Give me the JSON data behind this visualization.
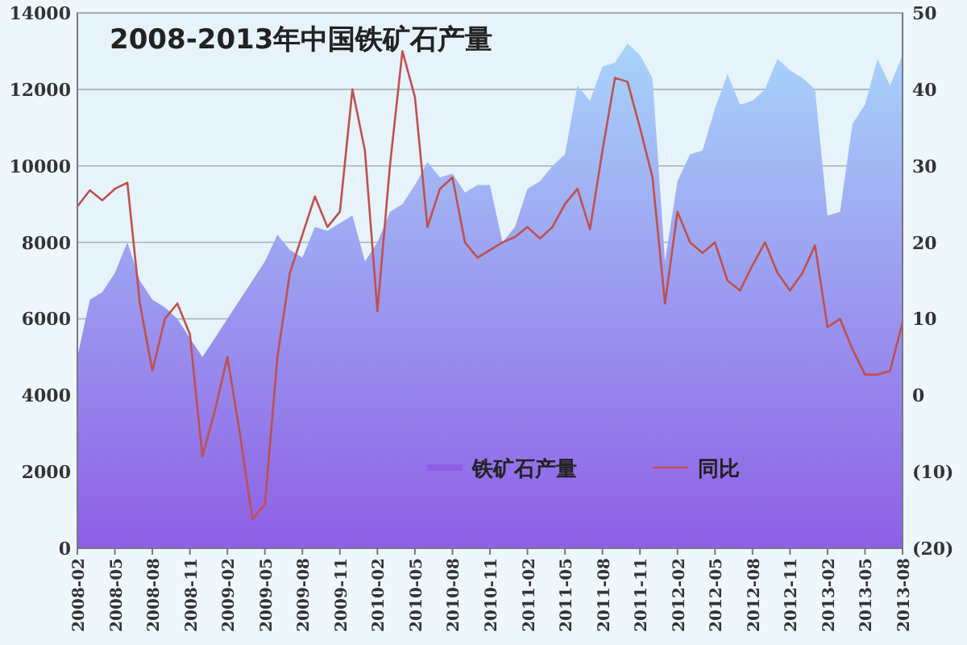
{
  "chart_data": {
    "type": "area",
    "title": "2008-2013年中国铁矿石产量",
    "categories": [
      "2008-02",
      null,
      null,
      "2008-05",
      null,
      null,
      "2008-08",
      null,
      null,
      "2008-11",
      null,
      null,
      "2009-02",
      null,
      null,
      "2009-05",
      null,
      null,
      "2009-08",
      null,
      null,
      "2009-11",
      null,
      null,
      "2010-02",
      null,
      null,
      "2010-05",
      null,
      null,
      "2010-08",
      null,
      null,
      "2010-11",
      null,
      null,
      "2011-02",
      null,
      null,
      "2011-05",
      null,
      null,
      "2011-08",
      null,
      null,
      "2011-11",
      null,
      null,
      "2012-02",
      null,
      null,
      "2012-05",
      null,
      null,
      "2012-08",
      null,
      null,
      "2012-11",
      null,
      null,
      "2013-02",
      null,
      null,
      "2013-05",
      null,
      null,
      "2013-08"
    ],
    "series": [
      {
        "name": "铁矿石产量",
        "color": "#8e5fe6",
        "values": [
          5000,
          6500,
          6700,
          7200,
          8000,
          7000,
          6500,
          6300,
          6000,
          5500,
          5000,
          5500,
          6000,
          6500,
          7000,
          7500,
          8200,
          7800,
          7600,
          8400,
          8300,
          8500,
          8700,
          7500,
          8000,
          8800,
          9000,
          9500,
          10100,
          9700,
          9800,
          9300,
          9500,
          9500,
          8000,
          8400,
          9400,
          9600,
          10000,
          10300,
          12100,
          11700,
          12600,
          12700,
          13200,
          12900,
          12300,
          7500,
          9600,
          10300,
          10400,
          11500,
          12400,
          11600,
          11700,
          12000,
          12800,
          12500,
          12300,
          12000,
          8700,
          8800,
          11100,
          11600,
          12800,
          12100,
          12900
        ]
      },
      {
        "name": "同比",
        "type": "line",
        "axis": "y2",
        "color": "#c0504d",
        "values": [
          24.7,
          26.8,
          25.5,
          27,
          27.8,
          12,
          3.2,
          10,
          12,
          8,
          -8,
          -2,
          5,
          -5,
          -16.2,
          -14.3,
          5,
          16,
          21,
          26,
          22,
          24,
          40,
          32,
          11,
          30,
          45,
          39,
          22,
          27,
          28.5,
          20,
          18,
          19,
          20,
          20.7,
          22,
          20.5,
          22,
          25,
          27,
          21.7,
          32,
          41.5,
          41,
          35,
          28.5,
          12,
          24,
          20,
          18.6,
          20,
          15,
          13.7,
          17,
          20,
          16,
          13.7,
          16,
          19.6,
          8.9,
          10,
          6,
          2.7,
          2.7,
          3.2,
          9.5
        ]
      }
    ],
    "ylim": [
      0,
      14000
    ],
    "yticks": [
      0,
      2000,
      4000,
      6000,
      8000,
      10000,
      12000,
      14000
    ],
    "y2lim": [
      -20,
      50
    ],
    "y2ticks": [
      {
        "value": -20,
        "label": "(20)"
      },
      {
        "value": -10,
        "label": "(10)"
      },
      0,
      10,
      20,
      30,
      40,
      50
    ],
    "grid": "y",
    "legend": "bottom"
  }
}
